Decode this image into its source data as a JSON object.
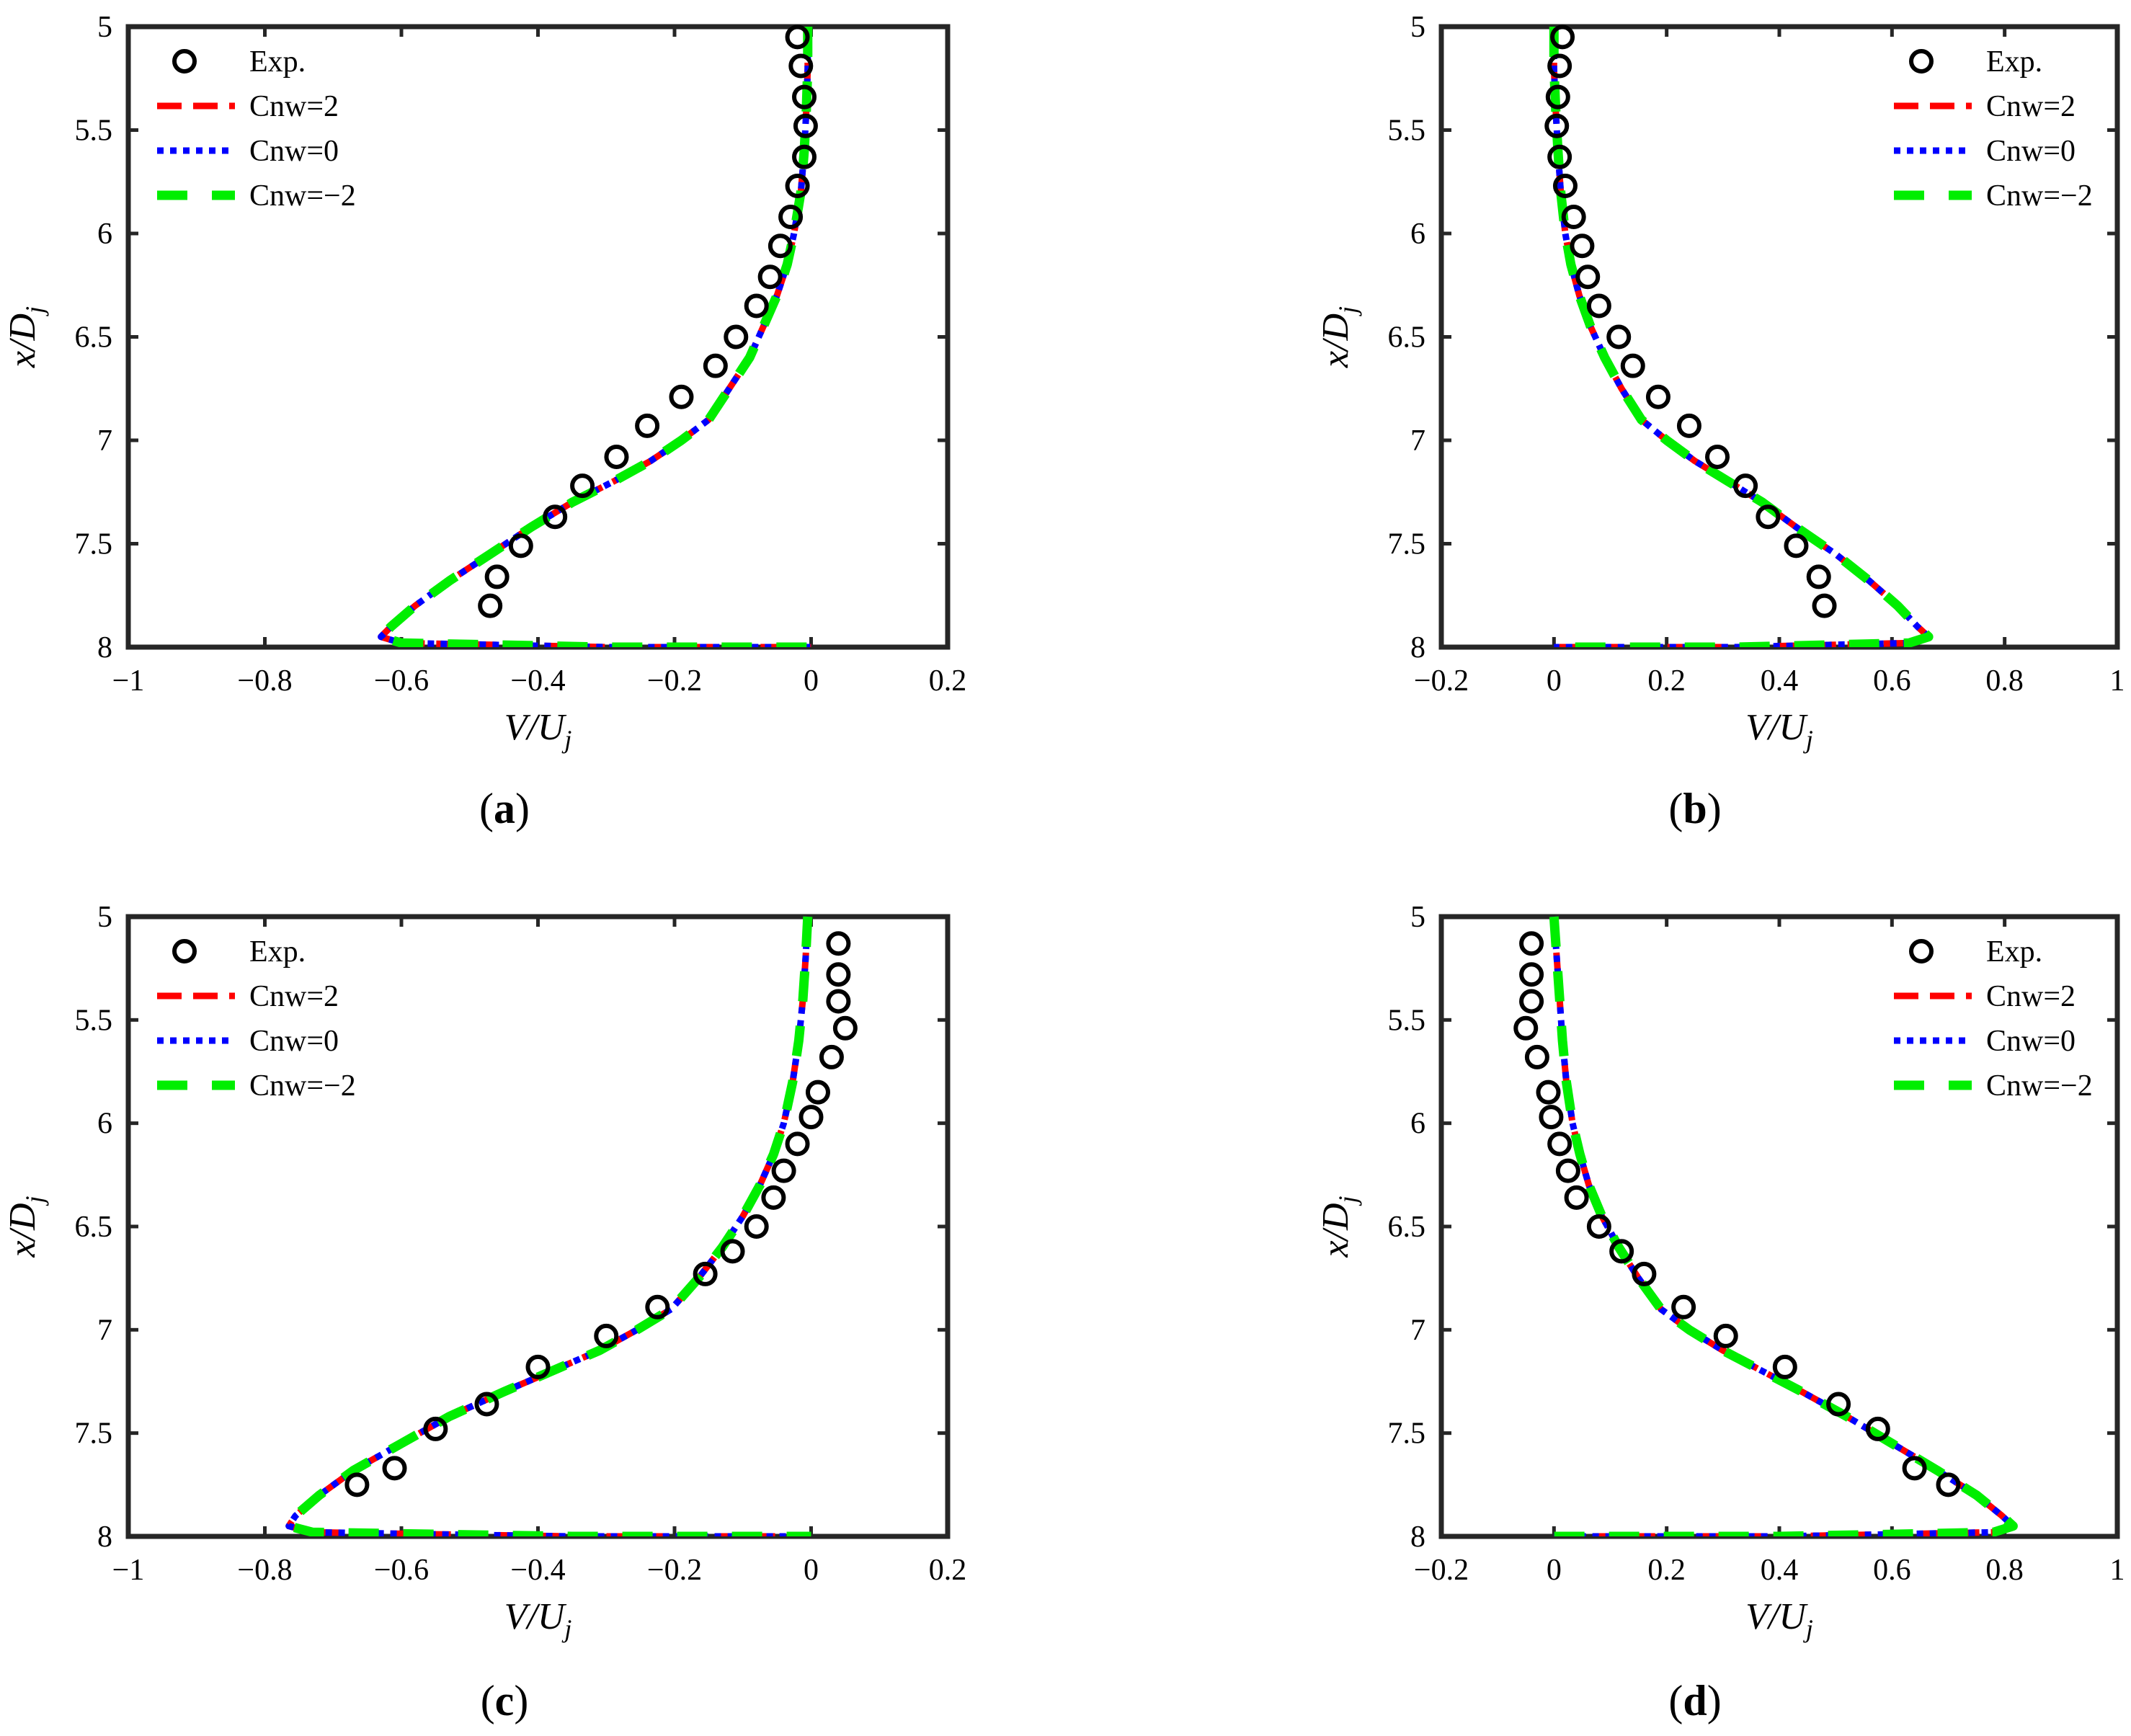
{
  "figure": {
    "panels": [
      {
        "id": "a",
        "label_prefix": "(",
        "label": "a",
        "label_suffix": ")",
        "xlabel": "V/U",
        "xlabel_sub": "j",
        "ylabel": "x/D",
        "ylabel_sub": "j",
        "xticks": [
          "−1",
          "−0.8",
          "−0.6",
          "−0.4",
          "−0.2",
          "0",
          "0.2"
        ],
        "yticks": [
          "5",
          "5.5",
          "6",
          "6.5",
          "7",
          "7.5",
          "8"
        ],
        "legend": [
          "Exp.",
          "Cnw=2",
          "Cnw=0",
          "Cnw=−2"
        ]
      },
      {
        "id": "b",
        "label_prefix": "(",
        "label": "b",
        "label_suffix": ")",
        "xlabel": "V/U",
        "xlabel_sub": "j",
        "ylabel": "x/D",
        "ylabel_sub": "j",
        "xticks": [
          "−0.2",
          "0",
          "0.2",
          "0.4",
          "0.6",
          "0.8",
          "1"
        ],
        "yticks": [
          "5",
          "5.5",
          "6",
          "6.5",
          "7",
          "7.5",
          "8"
        ],
        "legend": [
          "Exp.",
          "Cnw=2",
          "Cnw=0",
          "Cnw=−2"
        ]
      },
      {
        "id": "c",
        "label_prefix": "(",
        "label": "c",
        "label_suffix": ")",
        "xlabel": "V/U",
        "xlabel_sub": "j",
        "ylabel": "x/D",
        "ylabel_sub": "j",
        "xticks": [
          "−1",
          "−0.8",
          "−0.6",
          "−0.4",
          "−0.2",
          "0",
          "0.2"
        ],
        "yticks": [
          "5",
          "5.5",
          "6",
          "6.5",
          "7",
          "7.5",
          "8"
        ],
        "legend": [
          "Exp.",
          "Cnw=2",
          "Cnw=0",
          "Cnw=−2"
        ]
      },
      {
        "id": "d",
        "label_prefix": "(",
        "label": "d",
        "label_suffix": ")",
        "xlabel": "V/U",
        "xlabel_sub": "j",
        "ylabel": "x/D",
        "ylabel_sub": "j",
        "xticks": [
          "−0.2",
          "0",
          "0.2",
          "0.4",
          "0.6",
          "0.8",
          "1"
        ],
        "yticks": [
          "5",
          "5.5",
          "6",
          "6.5",
          "7",
          "7.5",
          "8"
        ],
        "legend": [
          "Exp.",
          "Cnw=2",
          "Cnw=0",
          "Cnw=−2"
        ]
      }
    ]
  },
  "colors": {
    "exp": "#000000",
    "cnw2": "#ff0000",
    "cnw0": "#0000ff",
    "cnwm2": "#00ee00",
    "axis": "#262626"
  },
  "chart_data": [
    {
      "type": "line",
      "panel": "a",
      "xlabel": "V/Uj",
      "ylabel": "x/Dj",
      "xlim": [
        -1,
        0.2
      ],
      "ylim": [
        5,
        8
      ],
      "y_reversed": true,
      "legend_position": "top-left",
      "experimental": {
        "name": "Exp.",
        "x": [
          -0.02,
          -0.015,
          -0.01,
          -0.008,
          -0.01,
          -0.02,
          -0.03,
          -0.045,
          -0.06,
          -0.08,
          -0.11,
          -0.14,
          -0.19,
          -0.24,
          -0.285,
          -0.335,
          -0.375,
          -0.425,
          -0.46,
          -0.47
        ],
        "y": [
          5.05,
          5.19,
          5.34,
          5.48,
          5.63,
          5.77,
          5.92,
          6.06,
          6.21,
          6.35,
          6.5,
          6.64,
          6.79,
          6.93,
          7.08,
          7.22,
          7.37,
          7.51,
          7.66,
          7.8
        ]
      },
      "model": {
        "x": [
          -0.005,
          -0.005,
          -0.007,
          -0.01,
          -0.015,
          -0.025,
          -0.035,
          -0.05,
          -0.07,
          -0.09,
          -0.12,
          -0.15,
          -0.19,
          -0.235,
          -0.29,
          -0.35,
          -0.41,
          -0.47,
          -0.53,
          -0.58,
          -0.615,
          -0.63,
          -0.6,
          -0.45,
          -0.3,
          -0.15,
          0.0
        ],
        "y": [
          5.0,
          5.2,
          5.4,
          5.6,
          5.8,
          6.0,
          6.15,
          6.3,
          6.45,
          6.6,
          6.75,
          6.9,
          7.0,
          7.1,
          7.2,
          7.3,
          7.42,
          7.55,
          7.68,
          7.8,
          7.9,
          7.95,
          7.98,
          7.99,
          8.0,
          8.0,
          8.0
        ]
      },
      "series": [
        {
          "name": "Cnw=2"
        },
        {
          "name": "Cnw=0"
        },
        {
          "name": "Cnw=−2"
        }
      ]
    },
    {
      "type": "line",
      "panel": "b",
      "xlabel": "V/Uj",
      "ylabel": "x/Dj",
      "xlim": [
        -0.2,
        1
      ],
      "ylim": [
        5,
        8
      ],
      "y_reversed": true,
      "legend_position": "top-right",
      "experimental": {
        "name": "Exp.",
        "x": [
          0.015,
          0.01,
          0.007,
          0.005,
          0.01,
          0.02,
          0.035,
          0.05,
          0.06,
          0.08,
          0.115,
          0.14,
          0.185,
          0.24,
          0.29,
          0.34,
          0.38,
          0.43,
          0.47,
          0.48
        ],
        "y": [
          5.05,
          5.19,
          5.34,
          5.48,
          5.63,
          5.77,
          5.92,
          6.06,
          6.21,
          6.35,
          6.5,
          6.64,
          6.79,
          6.93,
          7.08,
          7.22,
          7.37,
          7.51,
          7.66,
          7.8
        ]
      },
      "model": {
        "x": [
          0.0,
          0.0,
          0.003,
          0.007,
          0.012,
          0.02,
          0.03,
          0.045,
          0.065,
          0.09,
          0.12,
          0.155,
          0.2,
          0.25,
          0.31,
          0.37,
          0.43,
          0.5,
          0.56,
          0.61,
          0.645,
          0.665,
          0.63,
          0.48,
          0.32,
          0.16,
          0.0
        ],
        "y": [
          5.0,
          5.2,
          5.4,
          5.6,
          5.8,
          6.0,
          6.15,
          6.3,
          6.45,
          6.6,
          6.75,
          6.9,
          7.0,
          7.1,
          7.2,
          7.3,
          7.42,
          7.55,
          7.68,
          7.8,
          7.9,
          7.95,
          7.98,
          7.99,
          8.0,
          8.0,
          8.0
        ]
      },
      "series": [
        {
          "name": "Cnw=2"
        },
        {
          "name": "Cnw=0"
        },
        {
          "name": "Cnw=−2"
        }
      ]
    },
    {
      "type": "line",
      "panel": "c",
      "xlabel": "V/Uj",
      "ylabel": "x/Dj",
      "xlim": [
        -1,
        0.2
      ],
      "ylim": [
        5,
        8
      ],
      "y_reversed": true,
      "legend_position": "top-left",
      "experimental": {
        "name": "Exp.",
        "x": [
          0.04,
          0.04,
          0.04,
          0.05,
          0.03,
          0.01,
          0.0,
          -0.02,
          -0.04,
          -0.055,
          -0.08,
          -0.115,
          -0.155,
          -0.225,
          -0.3,
          -0.4,
          -0.475,
          -0.55,
          -0.61,
          -0.665
        ],
        "y": [
          5.13,
          5.28,
          5.41,
          5.54,
          5.68,
          5.85,
          5.97,
          6.1,
          6.23,
          6.36,
          6.5,
          6.62,
          6.73,
          6.89,
          7.03,
          7.18,
          7.36,
          7.48,
          7.67,
          7.75
        ]
      },
      "model": {
        "x": [
          -0.005,
          -0.008,
          -0.012,
          -0.018,
          -0.027,
          -0.04,
          -0.055,
          -0.075,
          -0.1,
          -0.13,
          -0.165,
          -0.205,
          -0.255,
          -0.31,
          -0.38,
          -0.45,
          -0.53,
          -0.6,
          -0.67,
          -0.72,
          -0.755,
          -0.765,
          -0.73,
          -0.55,
          -0.35,
          -0.17,
          0.0
        ],
        "y": [
          5.0,
          5.2,
          5.4,
          5.6,
          5.8,
          6.0,
          6.15,
          6.3,
          6.45,
          6.6,
          6.75,
          6.9,
          7.0,
          7.1,
          7.2,
          7.3,
          7.42,
          7.55,
          7.68,
          7.8,
          7.9,
          7.95,
          7.98,
          7.99,
          8.0,
          8.0,
          8.0
        ]
      },
      "series": [
        {
          "name": "Cnw=2"
        },
        {
          "name": "Cnw=0"
        },
        {
          "name": "Cnw=−2"
        }
      ]
    },
    {
      "type": "line",
      "panel": "d",
      "xlabel": "V/Uj",
      "ylabel": "x/Dj",
      "xlim": [
        -0.2,
        1
      ],
      "ylim": [
        5,
        8
      ],
      "y_reversed": true,
      "legend_position": "top-right",
      "experimental": {
        "name": "Exp.",
        "x": [
          -0.04,
          -0.04,
          -0.04,
          -0.05,
          -0.03,
          -0.01,
          -0.005,
          0.01,
          0.025,
          0.04,
          0.08,
          0.12,
          0.16,
          0.23,
          0.305,
          0.41,
          0.505,
          0.575,
          0.64,
          0.7
        ],
        "y": [
          5.13,
          5.28,
          5.41,
          5.54,
          5.68,
          5.85,
          5.97,
          6.1,
          6.23,
          6.36,
          6.5,
          6.62,
          6.73,
          6.89,
          7.03,
          7.18,
          7.36,
          7.48,
          7.67,
          7.75
        ]
      },
      "model": {
        "x": [
          0.0,
          0.005,
          0.01,
          0.015,
          0.022,
          0.033,
          0.046,
          0.062,
          0.085,
          0.115,
          0.15,
          0.19,
          0.24,
          0.3,
          0.37,
          0.44,
          0.52,
          0.6,
          0.68,
          0.75,
          0.795,
          0.815,
          0.78,
          0.6,
          0.4,
          0.2,
          0.0
        ],
        "y": [
          5.0,
          5.2,
          5.4,
          5.6,
          5.8,
          6.0,
          6.15,
          6.3,
          6.45,
          6.6,
          6.75,
          6.9,
          7.0,
          7.1,
          7.2,
          7.3,
          7.42,
          7.55,
          7.68,
          7.8,
          7.9,
          7.95,
          7.98,
          7.99,
          8.0,
          8.0,
          8.0
        ]
      },
      "series": [
        {
          "name": "Cnw=2"
        },
        {
          "name": "Cnw=0"
        },
        {
          "name": "Cnw=−2"
        }
      ]
    }
  ]
}
